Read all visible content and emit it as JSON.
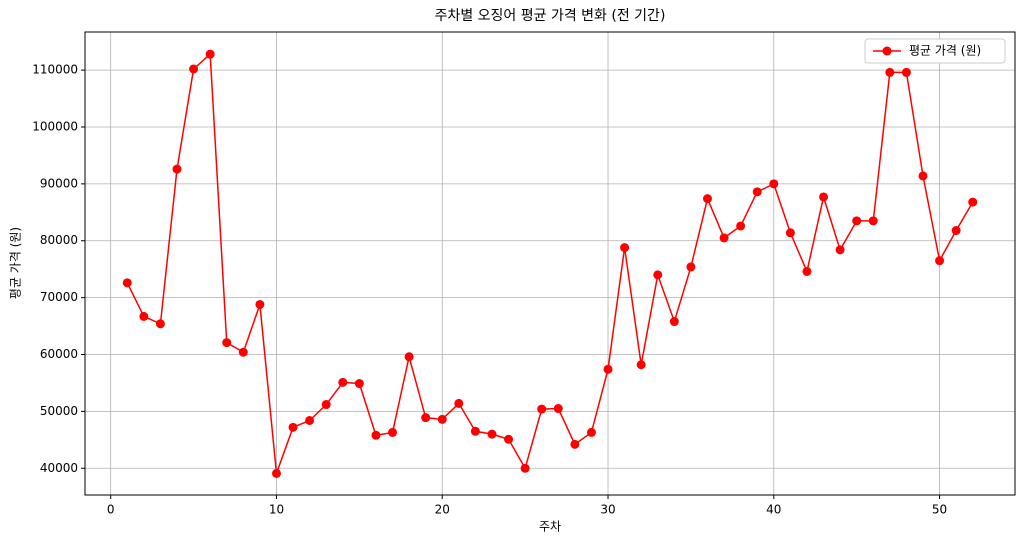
{
  "chart_data": {
    "type": "line",
    "title": "주차별 오징어 평균 가격 변화 (전 기간)",
    "xlabel": "주차",
    "ylabel": "평균 가격 (원)",
    "x": [
      1,
      2,
      3,
      4,
      5,
      6,
      7,
      8,
      9,
      10,
      11,
      12,
      13,
      14,
      15,
      16,
      17,
      18,
      19,
      20,
      21,
      22,
      23,
      24,
      25,
      26,
      27,
      28,
      29,
      30,
      31,
      32,
      33,
      34,
      35,
      36,
      37,
      38,
      39,
      40,
      41,
      42,
      43,
      44,
      45,
      46,
      47,
      48,
      49,
      50,
      51,
      52
    ],
    "series": [
      {
        "name": "평균 가격 (원)",
        "color": "#ff0000",
        "values": [
          72600,
          66700,
          65400,
          92600,
          110200,
          112800,
          62100,
          60400,
          68800,
          39100,
          47200,
          48400,
          51200,
          55100,
          54900,
          45800,
          46300,
          59600,
          48900,
          48600,
          51400,
          46500,
          46000,
          45100,
          40000,
          50400,
          50500,
          44200,
          46300,
          57400,
          78800,
          58200,
          74000,
          65800,
          75400,
          87400,
          80500,
          82600,
          88600,
          90000,
          81400,
          74600,
          87700,
          78400,
          83500,
          83500,
          109600,
          109600,
          91400,
          76500,
          81800,
          86800
        ]
      }
    ],
    "xlim": [
      -1.55,
      54.55
    ],
    "xticks": [
      0,
      10,
      20,
      30,
      40,
      50
    ],
    "ylim": [
      35300,
      116700
    ],
    "yticks": [
      40000,
      50000,
      60000,
      70000,
      80000,
      90000,
      100000,
      110000
    ],
    "grid": true,
    "legend": "upper right"
  }
}
